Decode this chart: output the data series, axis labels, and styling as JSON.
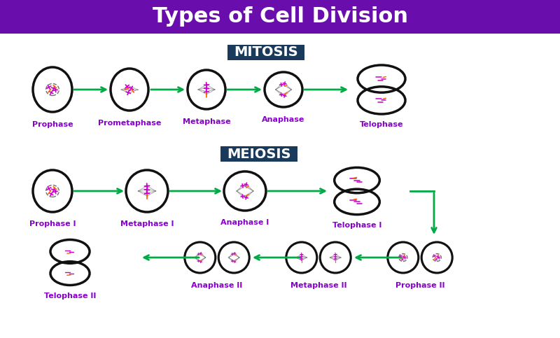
{
  "title": "Types of Cell Division",
  "title_bg": "#6a0dad",
  "title_color": "#ffffff",
  "title_fontsize": 22,
  "mitosis_label": "MITOSIS",
  "meiosis_label": "MEIOSIS",
  "section_label_bg": "#1a3a5c",
  "section_label_color": "#ffffff",
  "section_label_fontsize": 14,
  "bg_color": "#ffffff",
  "cell_outline_color": "#111111",
  "cell_lw": 2.5,
  "arrow_color": "#00aa44",
  "label_color": "#8800cc",
  "label_fontsize": 8,
  "chr_purple": "#cc00cc",
  "chr_orange": "#ff6600",
  "chr_dark": "#333333",
  "spindle_color": "#555555",
  "mitosis_phases": [
    "Prophase",
    "Prometaphase",
    "Metaphase",
    "Anaphase",
    "Telophase"
  ],
  "meiosis_phases_row1": [
    "Prophase I",
    "Metaphase I",
    "Anaphase I",
    "Telophase I"
  ],
  "meiosis_phases_row2": [
    "Telophase II",
    "Anaphase II",
    "Metaphase II",
    "Prophase II"
  ]
}
